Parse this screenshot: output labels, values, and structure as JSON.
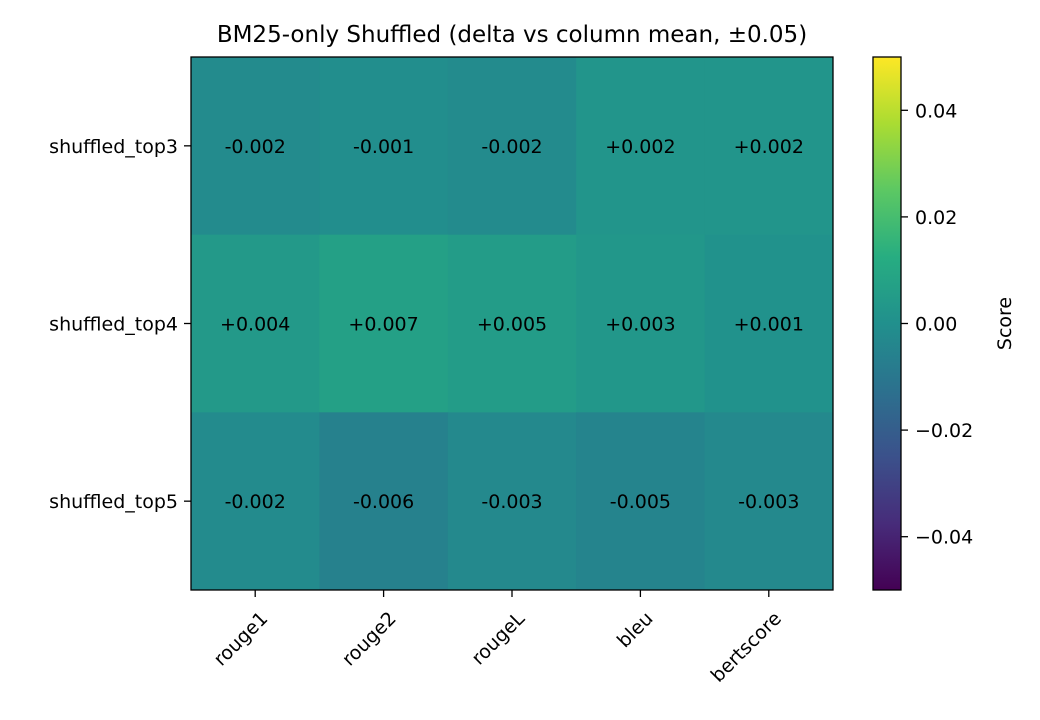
{
  "chart_data": {
    "type": "heatmap",
    "title": "BM25-only Shuffled (delta vs column mean, ±0.05)",
    "x_categories": [
      "rouge1",
      "rouge2",
      "rougeL",
      "bleu",
      "bertscore"
    ],
    "y_categories": [
      "shuffled_top3",
      "shuffled_top4",
      "shuffled_top5"
    ],
    "values": [
      [
        -0.002,
        -0.001,
        -0.002,
        0.002,
        0.002
      ],
      [
        0.004,
        0.007,
        0.005,
        0.003,
        0.001
      ],
      [
        -0.002,
        -0.006,
        -0.003,
        -0.005,
        -0.003
      ]
    ],
    "cell_labels": [
      [
        "-0.002",
        "-0.001",
        "-0.002",
        "+0.002",
        "+0.002"
      ],
      [
        "+0.004",
        "+0.007",
        "+0.005",
        "+0.003",
        "+0.001"
      ],
      [
        "-0.002",
        "-0.006",
        "-0.003",
        "-0.005",
        "-0.003"
      ]
    ],
    "colormap": "viridis",
    "vmin": -0.05,
    "vmax": 0.05,
    "colorbar": {
      "label": "Score",
      "ticks": [
        -0.04,
        -0.02,
        0.0,
        0.02,
        0.04
      ],
      "tick_labels": [
        "−0.04",
        "−0.02",
        "0.00",
        "0.02",
        "0.04"
      ]
    }
  }
}
